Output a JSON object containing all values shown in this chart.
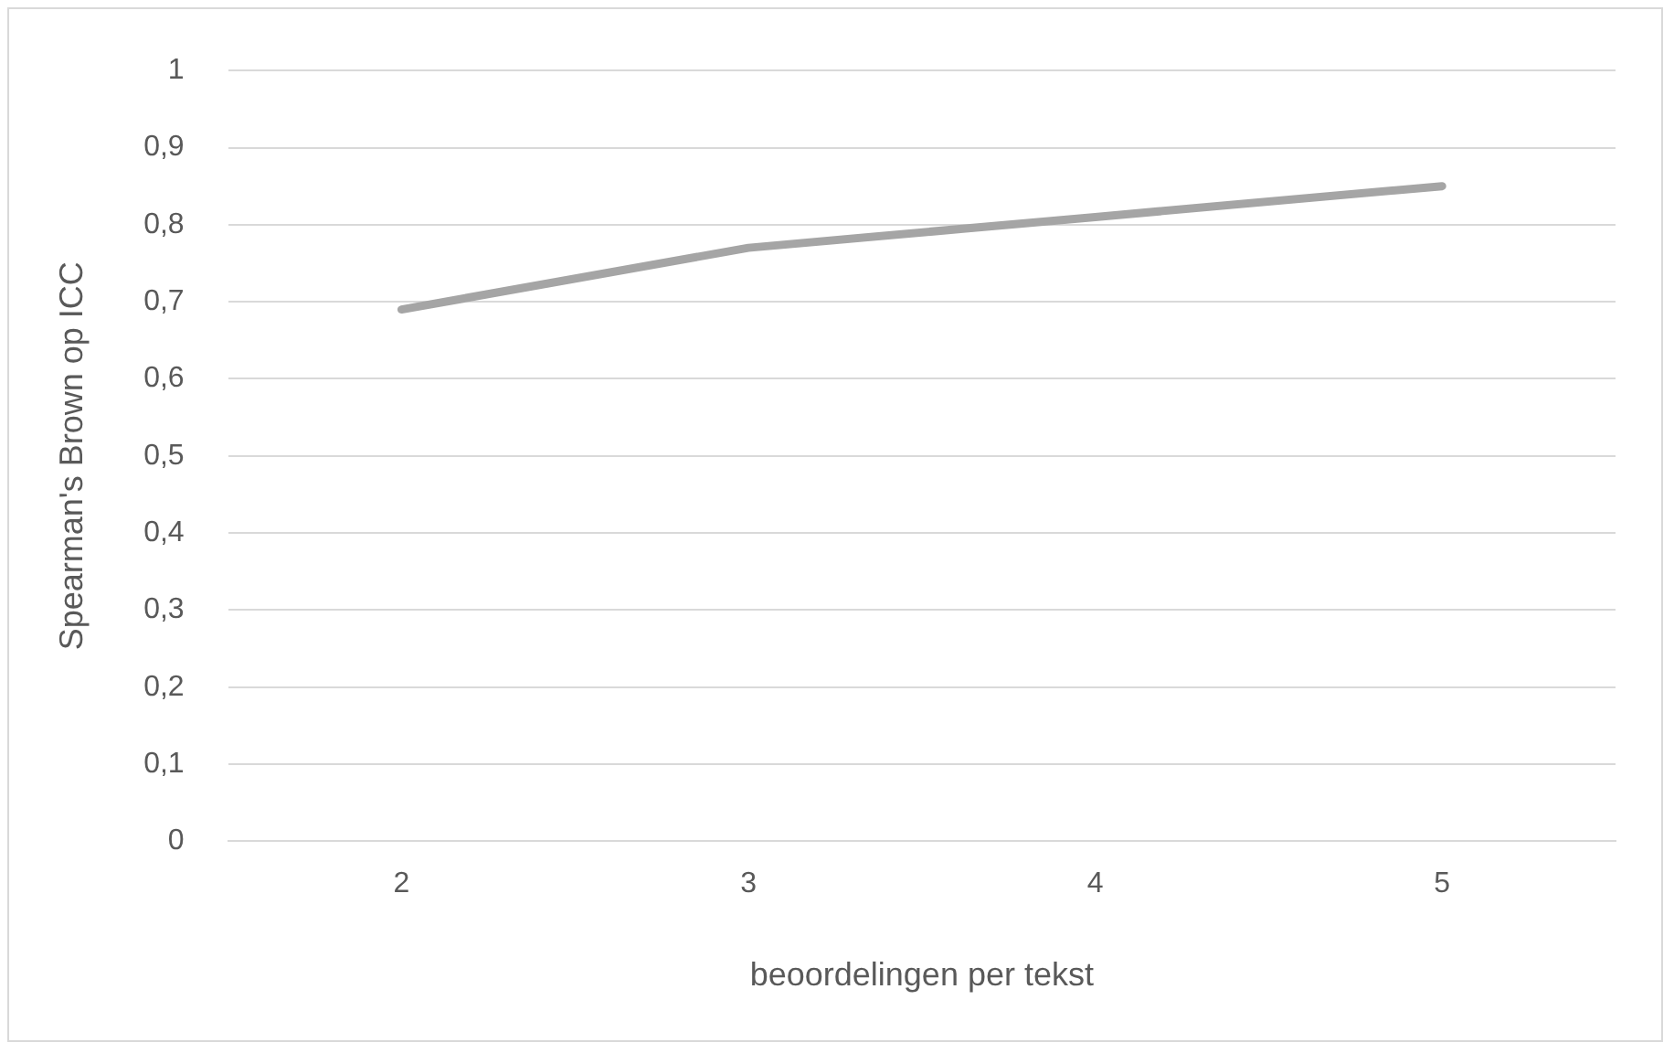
{
  "chart_data": {
    "type": "line",
    "xlabel": "beoordelingen per tekst",
    "ylabel": "Spearman's Brown op ICC",
    "categories": [
      "2",
      "3",
      "4",
      "5"
    ],
    "series": [
      {
        "color": "#a5a5a5",
        "values": [
          0.69,
          0.77,
          0.81,
          0.85
        ]
      }
    ],
    "ylim": [
      0,
      1
    ],
    "yticks": [
      {
        "value": 0,
        "label": "0"
      },
      {
        "value": 0.1,
        "label": "0,1"
      },
      {
        "value": 0.2,
        "label": "0,2"
      },
      {
        "value": 0.3,
        "label": "0,3"
      },
      {
        "value": 0.4,
        "label": "0,4"
      },
      {
        "value": 0.5,
        "label": "0,5"
      },
      {
        "value": 0.6,
        "label": "0,6"
      },
      {
        "value": 0.7,
        "label": "0,7"
      },
      {
        "value": 0.8,
        "label": "0,8"
      },
      {
        "value": 0.9,
        "label": "0,9"
      },
      {
        "value": 1,
        "label": "1"
      }
    ],
    "grid": "y",
    "legend": false,
    "marker": "none",
    "line_style": "solid"
  }
}
